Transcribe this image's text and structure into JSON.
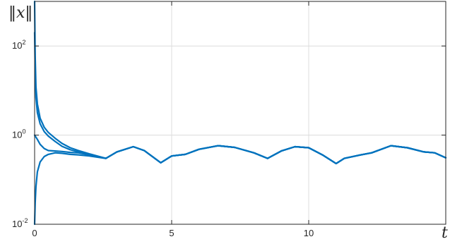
{
  "chart_data": {
    "type": "line",
    "title": "",
    "xlabel": "t",
    "ylabel": "‖x‖",
    "x_scale": "linear",
    "y_scale": "log",
    "xlim": [
      0,
      15
    ],
    "ylim": [
      0.01,
      1000
    ],
    "grid": true,
    "legend": "none",
    "x_ticks": [
      {
        "value": 0,
        "label": "0"
      },
      {
        "value": 5,
        "label": "5"
      },
      {
        "value": 10,
        "label": "10"
      }
    ],
    "y_ticks": [
      {
        "value": 0.01,
        "base": "10",
        "exp": "-2"
      },
      {
        "value": 1,
        "base": "10",
        "exp": "0"
      },
      {
        "value": 100,
        "base": "10",
        "exp": "2"
      }
    ],
    "line_color": "#0072BD",
    "series": [
      {
        "x": [
          0,
          0.02,
          0.05,
          0.1,
          0.2,
          0.35,
          0.5,
          0.75,
          1.0,
          1.3,
          1.6,
          2.0,
          2.6,
          3.0,
          3.6,
          4.0,
          4.6,
          5.0,
          5.5,
          6.0,
          6.7,
          7.3,
          8.0,
          8.5,
          9.0,
          9.5,
          10.0,
          10.5,
          11.0,
          11.3,
          11.8,
          12.3,
          13.0,
          13.6,
          14.2,
          14.6,
          15.0
        ],
        "y": [
          1000,
          60,
          12,
          5,
          2.4,
          1.5,
          1.15,
          0.85,
          0.65,
          0.52,
          0.45,
          0.38,
          0.3,
          0.42,
          0.55,
          0.45,
          0.24,
          0.34,
          0.37,
          0.48,
          0.58,
          0.53,
          0.4,
          0.3,
          0.44,
          0.55,
          0.52,
          0.36,
          0.23,
          0.3,
          0.35,
          0.4,
          0.58,
          0.52,
          0.42,
          0.4,
          0.31
        ]
      },
      {
        "x": [
          0,
          0.02,
          0.05,
          0.1,
          0.2,
          0.35,
          0.5,
          0.75,
          1.0,
          1.3,
          1.6,
          2.0,
          2.6,
          3.0,
          3.6,
          4.0,
          4.6,
          5.0,
          5.5,
          6.0,
          6.7,
          7.3,
          8.0,
          8.5,
          9.0,
          9.5,
          10.0,
          10.5,
          11.0,
          11.3,
          11.8,
          12.3,
          13.0,
          13.6,
          14.2,
          14.6,
          15.0
        ],
        "y": [
          200,
          30,
          7,
          3.2,
          1.8,
          1.2,
          0.95,
          0.72,
          0.56,
          0.47,
          0.42,
          0.37,
          0.3,
          0.42,
          0.55,
          0.45,
          0.24,
          0.34,
          0.37,
          0.48,
          0.58,
          0.53,
          0.4,
          0.3,
          0.44,
          0.55,
          0.52,
          0.36,
          0.23,
          0.3,
          0.35,
          0.4,
          0.58,
          0.52,
          0.42,
          0.4,
          0.31
        ]
      },
      {
        "x": [
          0,
          0.1,
          0.2,
          0.35,
          0.5,
          0.75,
          1.0,
          1.3,
          1.6,
          2.0,
          2.6,
          3.0,
          3.6,
          4.0,
          4.6,
          5.0,
          5.5,
          6.0,
          6.7,
          7.3,
          8.0,
          8.5,
          9.0,
          9.5,
          10.0,
          10.5,
          11.0,
          11.3,
          11.8,
          12.3,
          13.0,
          13.6,
          14.2,
          14.6,
          15.0
        ],
        "y": [
          1.0,
          0.8,
          0.62,
          0.5,
          0.45,
          0.44,
          0.43,
          0.41,
          0.4,
          0.36,
          0.3,
          0.42,
          0.55,
          0.45,
          0.24,
          0.34,
          0.37,
          0.48,
          0.58,
          0.53,
          0.4,
          0.3,
          0.44,
          0.55,
          0.52,
          0.36,
          0.23,
          0.3,
          0.35,
          0.4,
          0.58,
          0.52,
          0.42,
          0.4,
          0.31
        ]
      },
      {
        "x": [
          0,
          0.02,
          0.05,
          0.1,
          0.2,
          0.35,
          0.5,
          0.75,
          1.0,
          1.3,
          1.6,
          2.0,
          2.6,
          3.0,
          3.6,
          4.0,
          4.6,
          5.0,
          5.5,
          6.0,
          6.7,
          7.3,
          8.0,
          8.5,
          9.0,
          9.5,
          10.0,
          10.5,
          11.0,
          11.3,
          11.8,
          12.3,
          13.0,
          13.6,
          14.2,
          14.6,
          15.0
        ],
        "y": [
          0.01,
          0.03,
          0.07,
          0.15,
          0.25,
          0.33,
          0.37,
          0.4,
          0.39,
          0.37,
          0.36,
          0.34,
          0.3,
          0.42,
          0.55,
          0.45,
          0.24,
          0.34,
          0.37,
          0.48,
          0.58,
          0.53,
          0.4,
          0.3,
          0.44,
          0.55,
          0.52,
          0.36,
          0.23,
          0.3,
          0.35,
          0.4,
          0.58,
          0.52,
          0.42,
          0.4,
          0.31
        ]
      }
    ]
  }
}
